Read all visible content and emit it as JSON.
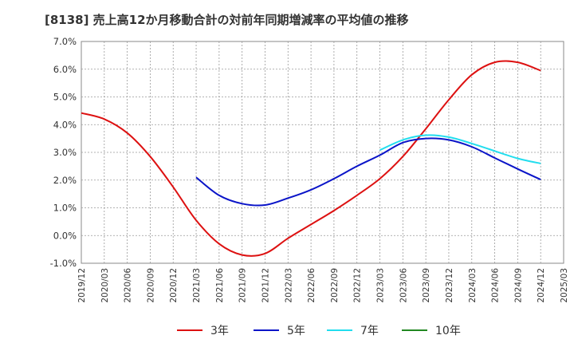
{
  "chart_data": {
    "type": "line",
    "title": "[8138]  売上高12か月移動合計の対前年同期増減率の平均値の推移",
    "xlabel": "",
    "ylabel": "",
    "ylim": [
      -1.0,
      7.0
    ],
    "y_ticks": [
      "7.0%",
      "6.0%",
      "5.0%",
      "4.0%",
      "3.0%",
      "2.0%",
      "1.0%",
      "0.0%",
      "-1.0%"
    ],
    "x_ticks": [
      "2019/12",
      "2020/03",
      "2020/06",
      "2020/09",
      "2020/12",
      "2021/03",
      "2021/06",
      "2021/09",
      "2021/12",
      "2022/03",
      "2022/06",
      "2022/09",
      "2022/12",
      "2023/03",
      "2023/06",
      "2023/09",
      "2023/12",
      "2024/03",
      "2024/06",
      "2024/09",
      "2024/12",
      "2025/03"
    ],
    "grid": true,
    "legend_position": "bottom",
    "series": [
      {
        "name": "3年",
        "color": "#dd1111",
        "points": [
          [
            "2019/12",
            4.42
          ],
          [
            "2020/03",
            4.2
          ],
          [
            "2020/06",
            3.7
          ],
          [
            "2020/09",
            2.85
          ],
          [
            "2020/12",
            1.75
          ],
          [
            "2021/03",
            0.55
          ],
          [
            "2021/06",
            -0.3
          ],
          [
            "2021/09",
            -0.7
          ],
          [
            "2021/12",
            -0.65
          ],
          [
            "2022/03",
            -0.1
          ],
          [
            "2022/06",
            0.4
          ],
          [
            "2022/09",
            0.9
          ],
          [
            "2022/12",
            1.45
          ],
          [
            "2023/03",
            2.05
          ],
          [
            "2023/06",
            2.85
          ],
          [
            "2023/09",
            3.85
          ],
          [
            "2023/12",
            4.9
          ],
          [
            "2024/03",
            5.8
          ],
          [
            "2024/06",
            6.25
          ],
          [
            "2024/09",
            6.25
          ],
          [
            "2024/12",
            5.95
          ]
        ]
      },
      {
        "name": "5年",
        "color": "#0a14c8",
        "points": [
          [
            "2021/03",
            2.1
          ],
          [
            "2021/06",
            1.45
          ],
          [
            "2021/09",
            1.15
          ],
          [
            "2021/12",
            1.1
          ],
          [
            "2022/03",
            1.35
          ],
          [
            "2022/06",
            1.65
          ],
          [
            "2022/09",
            2.05
          ],
          [
            "2022/12",
            2.5
          ],
          [
            "2023/03",
            2.9
          ],
          [
            "2023/06",
            3.35
          ],
          [
            "2023/09",
            3.5
          ],
          [
            "2023/12",
            3.45
          ],
          [
            "2024/03",
            3.2
          ],
          [
            "2024/06",
            2.8
          ],
          [
            "2024/09",
            2.4
          ],
          [
            "2024/12",
            2.02
          ]
        ]
      },
      {
        "name": "7年",
        "color": "#22ddee",
        "points": [
          [
            "2023/03",
            3.08
          ],
          [
            "2023/06",
            3.45
          ],
          [
            "2023/09",
            3.62
          ],
          [
            "2023/12",
            3.55
          ],
          [
            "2024/03",
            3.32
          ],
          [
            "2024/06",
            3.05
          ],
          [
            "2024/09",
            2.78
          ],
          [
            "2024/12",
            2.6
          ]
        ]
      },
      {
        "name": "10年",
        "color": "#228822",
        "points": []
      }
    ]
  }
}
